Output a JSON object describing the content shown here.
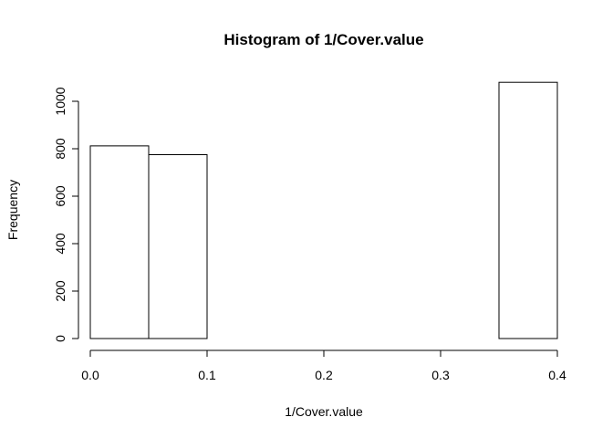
{
  "chart_data": {
    "type": "bar",
    "title": "Histogram of 1/Cover.value",
    "xlabel": "1/Cover.value",
    "ylabel": "Frequency",
    "bins": [
      {
        "from": 0.0,
        "to": 0.05,
        "count": 812
      },
      {
        "from": 0.05,
        "to": 0.1,
        "count": 775
      },
      {
        "from": 0.1,
        "to": 0.15,
        "count": 0
      },
      {
        "from": 0.15,
        "to": 0.2,
        "count": 0
      },
      {
        "from": 0.2,
        "to": 0.25,
        "count": 0
      },
      {
        "from": 0.25,
        "to": 0.3,
        "count": 0
      },
      {
        "from": 0.3,
        "to": 0.35,
        "count": 0
      },
      {
        "from": 0.35,
        "to": 0.4,
        "count": 1080
      }
    ],
    "xlim": [
      0,
      0.4
    ],
    "ylim": [
      0,
      1000
    ],
    "x_ticks": [
      "0.0",
      "0.1",
      "0.2",
      "0.3",
      "0.4"
    ],
    "x_tick_values": [
      0,
      0.1,
      0.2,
      0.3,
      0.4
    ],
    "y_ticks": [
      "0",
      "200",
      "400",
      "600",
      "800",
      "1000"
    ],
    "y_tick_values": [
      0,
      200,
      400,
      600,
      800,
      1000
    ],
    "bar_fill": "#ffffff",
    "bar_stroke": "#000000",
    "grid": false,
    "legend": "none"
  }
}
